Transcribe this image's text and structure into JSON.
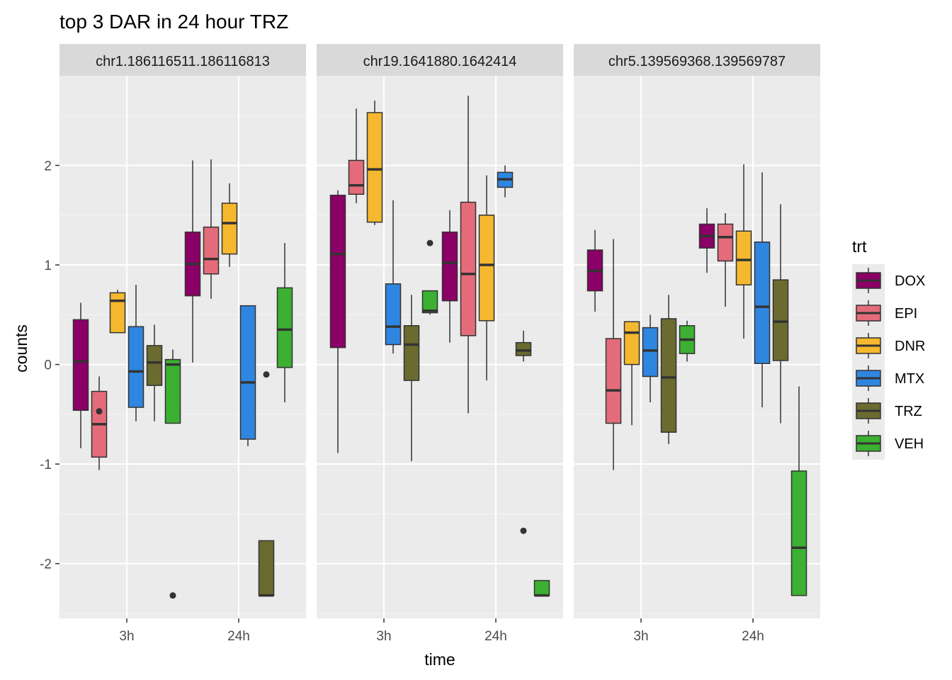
{
  "chart_data": {
    "type": "boxplot",
    "title": "top 3 DAR in 24 hour TRZ",
    "xlabel": "time",
    "ylabel": "counts",
    "x_categories": [
      "3h",
      "24h"
    ],
    "ylim": [
      -2.55,
      2.9
    ],
    "y_ticks": [
      -2,
      -1,
      0,
      1,
      2
    ],
    "legend": {
      "title": "trt",
      "position": "right",
      "entries": [
        {
          "name": "DOX",
          "color": "#8B0066"
        },
        {
          "name": "EPI",
          "color": "#E46C7A"
        },
        {
          "name": "DNR",
          "color": "#F5B82E"
        },
        {
          "name": "MTX",
          "color": "#2F86E0"
        },
        {
          "name": "TRZ",
          "color": "#6B6B30"
        },
        {
          "name": "VEH",
          "color": "#3BB031"
        }
      ]
    },
    "panels": [
      {
        "strip": "chr1.186116511.186116813",
        "groups": [
          {
            "time": "3h",
            "trt": "DOX",
            "min": -0.84,
            "q1": -0.46,
            "median": 0.03,
            "q3": 0.45,
            "max": 0.62,
            "outliers": []
          },
          {
            "time": "3h",
            "trt": "EPI",
            "min": -1.06,
            "q1": -0.93,
            "median": -0.6,
            "q3": -0.27,
            "max": -0.12,
            "outliers": [
              -0.47
            ]
          },
          {
            "time": "3h",
            "trt": "DNR",
            "min": 0.32,
            "q1": 0.32,
            "median": 0.64,
            "q3": 0.72,
            "max": 0.75,
            "outliers": []
          },
          {
            "time": "3h",
            "trt": "MTX",
            "min": -0.57,
            "q1": -0.43,
            "median": -0.07,
            "q3": 0.38,
            "max": 0.8,
            "outliers": []
          },
          {
            "time": "3h",
            "trt": "TRZ",
            "min": -0.57,
            "q1": -0.21,
            "median": 0.02,
            "q3": 0.19,
            "max": 0.4,
            "outliers": []
          },
          {
            "time": "3h",
            "trt": "VEH",
            "min": -0.59,
            "q1": -0.59,
            "median": 0.0,
            "q3": 0.05,
            "max": 0.15,
            "outliers": [
              -2.32
            ]
          },
          {
            "time": "24h",
            "trt": "DOX",
            "min": 0.02,
            "q1": 0.69,
            "median": 1.01,
            "q3": 1.33,
            "max": 2.05,
            "outliers": []
          },
          {
            "time": "24h",
            "trt": "EPI",
            "min": 0.66,
            "q1": 0.91,
            "median": 1.06,
            "q3": 1.38,
            "max": 2.06,
            "outliers": []
          },
          {
            "time": "24h",
            "trt": "DNR",
            "min": 0.98,
            "q1": 1.11,
            "median": 1.42,
            "q3": 1.62,
            "max": 1.82,
            "outliers": []
          },
          {
            "time": "24h",
            "trt": "MTX",
            "min": -0.82,
            "q1": -0.75,
            "median": -0.18,
            "q3": 0.59,
            "max": 0.59,
            "outliers": []
          },
          {
            "time": "24h",
            "trt": "TRZ",
            "min": -2.32,
            "q1": -2.32,
            "median": -2.32,
            "q3": -1.77,
            "max": -1.77,
            "outliers": [
              -0.1
            ]
          },
          {
            "time": "24h",
            "trt": "VEH",
            "min": -0.38,
            "q1": -0.03,
            "median": 0.35,
            "q3": 0.77,
            "max": 1.22,
            "outliers": []
          }
        ]
      },
      {
        "strip": "chr19.1641880.1642414",
        "groups": [
          {
            "time": "3h",
            "trt": "DOX",
            "min": -0.89,
            "q1": 0.17,
            "median": 1.11,
            "q3": 1.7,
            "max": 1.75,
            "outliers": []
          },
          {
            "time": "3h",
            "trt": "EPI",
            "min": 1.62,
            "q1": 1.71,
            "median": 1.8,
            "q3": 2.05,
            "max": 2.57,
            "outliers": []
          },
          {
            "time": "3h",
            "trt": "DNR",
            "min": 1.4,
            "q1": 1.43,
            "median": 1.96,
            "q3": 2.53,
            "max": 2.65,
            "outliers": []
          },
          {
            "time": "3h",
            "trt": "MTX",
            "min": 0.11,
            "q1": 0.2,
            "median": 0.38,
            "q3": 0.81,
            "max": 1.65,
            "outliers": []
          },
          {
            "time": "3h",
            "trt": "TRZ",
            "min": -0.97,
            "q1": -0.16,
            "median": 0.2,
            "q3": 0.39,
            "max": 0.7,
            "outliers": []
          },
          {
            "time": "3h",
            "trt": "VEH",
            "min": 0.5,
            "q1": 0.52,
            "median": 0.54,
            "q3": 0.74,
            "max": 0.74,
            "outliers": [
              1.22
            ]
          },
          {
            "time": "24h",
            "trt": "DOX",
            "min": 0.22,
            "q1": 0.64,
            "median": 1.02,
            "q3": 1.33,
            "max": 1.55,
            "outliers": []
          },
          {
            "time": "24h",
            "trt": "EPI",
            "min": -0.49,
            "q1": 0.29,
            "median": 0.91,
            "q3": 1.63,
            "max": 2.7,
            "outliers": []
          },
          {
            "time": "24h",
            "trt": "DNR",
            "min": -0.16,
            "q1": 0.44,
            "median": 1.0,
            "q3": 1.5,
            "max": 1.9,
            "outliers": []
          },
          {
            "time": "24h",
            "trt": "MTX",
            "min": 1.68,
            "q1": 1.78,
            "median": 1.86,
            "q3": 1.93,
            "max": 2.0,
            "outliers": []
          },
          {
            "time": "24h",
            "trt": "TRZ",
            "min": 0.03,
            "q1": 0.09,
            "median": 0.14,
            "q3": 0.22,
            "max": 0.34,
            "outliers": [
              -1.67
            ]
          },
          {
            "time": "24h",
            "trt": "VEH",
            "min": -2.32,
            "q1": -2.32,
            "median": -2.32,
            "q3": -2.17,
            "max": -2.17,
            "outliers": []
          }
        ]
      },
      {
        "strip": "chr5.139569368.139569787",
        "groups": [
          {
            "time": "3h",
            "trt": "DOX",
            "min": 0.53,
            "q1": 0.74,
            "median": 0.94,
            "q3": 1.15,
            "max": 1.35,
            "outliers": []
          },
          {
            "time": "3h",
            "trt": "EPI",
            "min": -1.06,
            "q1": -0.59,
            "median": -0.26,
            "q3": 0.26,
            "max": 1.26,
            "outliers": []
          },
          {
            "time": "3h",
            "trt": "DNR",
            "min": -0.61,
            "q1": 0.0,
            "median": 0.32,
            "q3": 0.43,
            "max": 0.43,
            "outliers": []
          },
          {
            "time": "3h",
            "trt": "MTX",
            "min": -0.38,
            "q1": -0.12,
            "median": 0.14,
            "q3": 0.37,
            "max": 0.5,
            "outliers": []
          },
          {
            "time": "3h",
            "trt": "TRZ",
            "min": -0.8,
            "q1": -0.68,
            "median": -0.13,
            "q3": 0.46,
            "max": 0.7,
            "outliers": []
          },
          {
            "time": "3h",
            "trt": "VEH",
            "min": 0.03,
            "q1": 0.11,
            "median": 0.25,
            "q3": 0.39,
            "max": 0.44,
            "outliers": []
          },
          {
            "time": "24h",
            "trt": "DOX",
            "min": 0.92,
            "q1": 1.17,
            "median": 1.29,
            "q3": 1.41,
            "max": 1.57,
            "outliers": []
          },
          {
            "time": "24h",
            "trt": "EPI",
            "min": 0.58,
            "q1": 1.04,
            "median": 1.28,
            "q3": 1.41,
            "max": 1.52,
            "outliers": []
          },
          {
            "time": "24h",
            "trt": "DNR",
            "min": 0.26,
            "q1": 0.8,
            "median": 1.05,
            "q3": 1.34,
            "max": 2.01,
            "outliers": []
          },
          {
            "time": "24h",
            "trt": "MTX",
            "min": -0.43,
            "q1": 0.01,
            "median": 0.58,
            "q3": 1.23,
            "max": 1.93,
            "outliers": []
          },
          {
            "time": "24h",
            "trt": "TRZ",
            "min": -0.59,
            "q1": 0.04,
            "median": 0.43,
            "q3": 0.85,
            "max": 1.61,
            "outliers": []
          },
          {
            "time": "24h",
            "trt": "VEH",
            "min": -2.32,
            "q1": -2.32,
            "median": -1.84,
            "q3": -1.07,
            "max": -0.22,
            "outliers": []
          }
        ]
      }
    ]
  }
}
